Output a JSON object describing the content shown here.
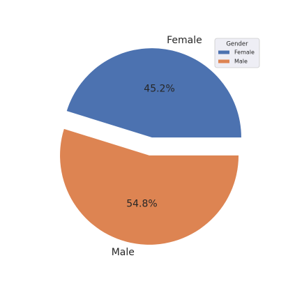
{
  "chart_data": {
    "type": "pie",
    "categories": [
      "Female",
      "Male"
    ],
    "values": [
      45.2,
      54.8
    ],
    "value_labels": [
      "45.2%",
      "54.8%"
    ],
    "colors": [
      "#4c72b0",
      "#dd8452"
    ],
    "legend_title": "Gender",
    "legend": "upper right"
  }
}
